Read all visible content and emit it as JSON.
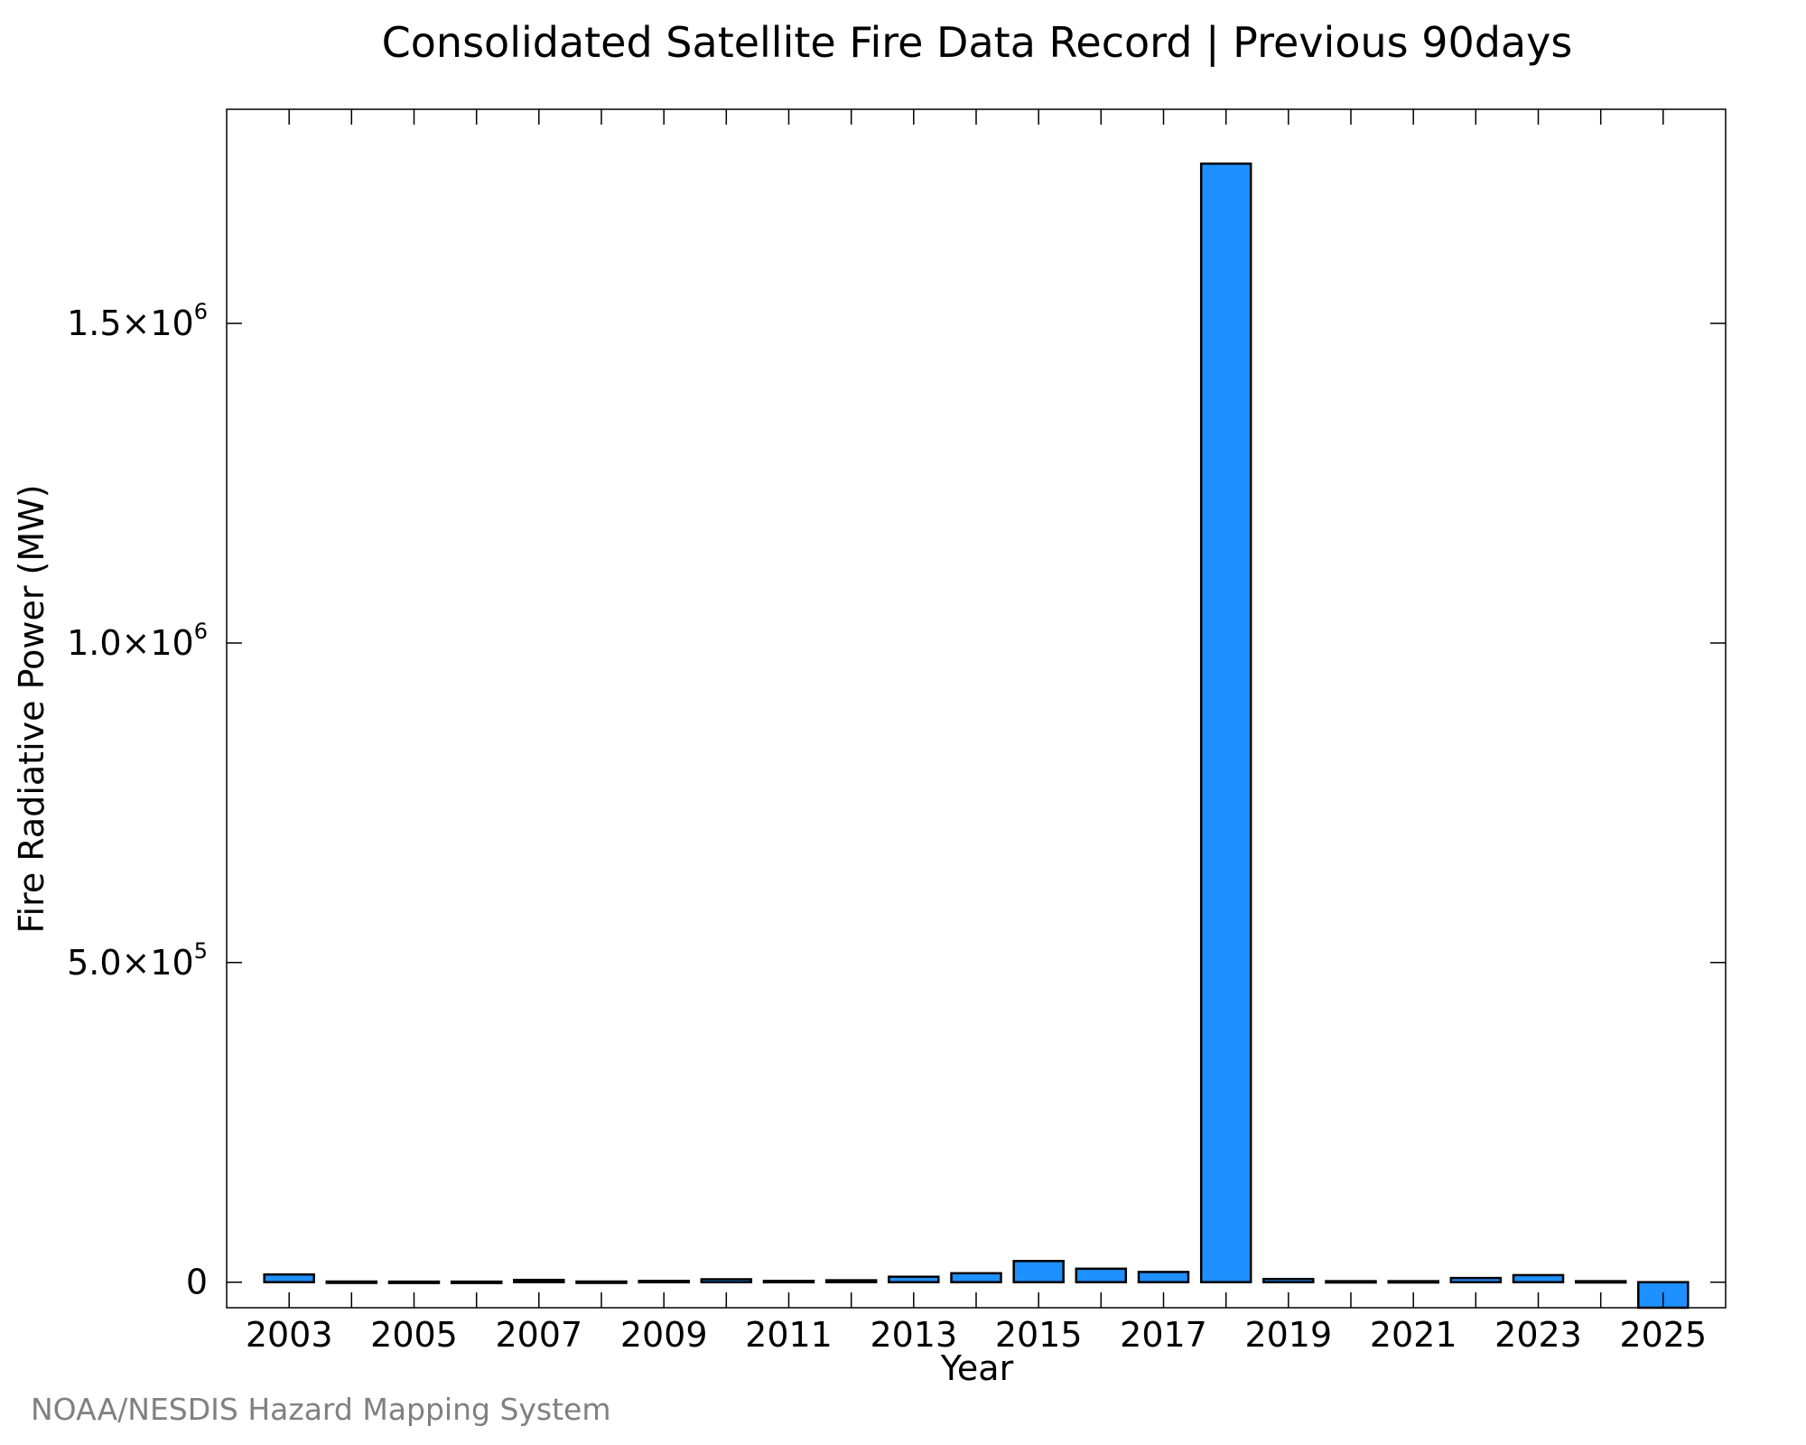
{
  "chart_data": {
    "type": "bar",
    "title": "Consolidated Satellite Fire Data Record | Previous 90days",
    "xlabel": "Year",
    "ylabel": "Fire Radiative Power (MW)",
    "credit": "NOAA/NESDIS Hazard Mapping System",
    "categories": [
      "2003",
      "2004",
      "2005",
      "2006",
      "2007",
      "2008",
      "2009",
      "2010",
      "2011",
      "2012",
      "2013",
      "2014",
      "2015",
      "2016",
      "2017",
      "2018",
      "2019",
      "2020",
      "2021",
      "2022",
      "2023",
      "2024",
      "2025"
    ],
    "values": [
      12000,
      1000,
      800,
      900,
      3500,
      1000,
      2000,
      4500,
      2000,
      3000,
      8500,
      14000,
      33000,
      21000,
      16000,
      1750000,
      5000,
      1500,
      1500,
      6500,
      11000,
      1500,
      -40000
    ],
    "x_tick_labels": [
      "2003",
      "2005",
      "2007",
      "2009",
      "2011",
      "2013",
      "2015",
      "2017",
      "2019",
      "2021",
      "2023",
      "2025"
    ],
    "y_ticks": [
      {
        "value": 0,
        "mantissa": "0",
        "exponent": ""
      },
      {
        "value": 500000,
        "mantissa": "5.0×10",
        "exponent": "5"
      },
      {
        "value": 1000000,
        "mantissa": "1.0×10",
        "exponent": "6"
      },
      {
        "value": 1500000,
        "mantissa": "1.5×10",
        "exponent": "6"
      }
    ],
    "xlim": [
      2002,
      2026
    ],
    "ylim": [
      -40000,
      1835000
    ],
    "grid": false,
    "legend": "none",
    "colors": {
      "bar_fill": "#1e90ff",
      "bar_edge": "#000000",
      "credit_text": "#808080"
    }
  }
}
